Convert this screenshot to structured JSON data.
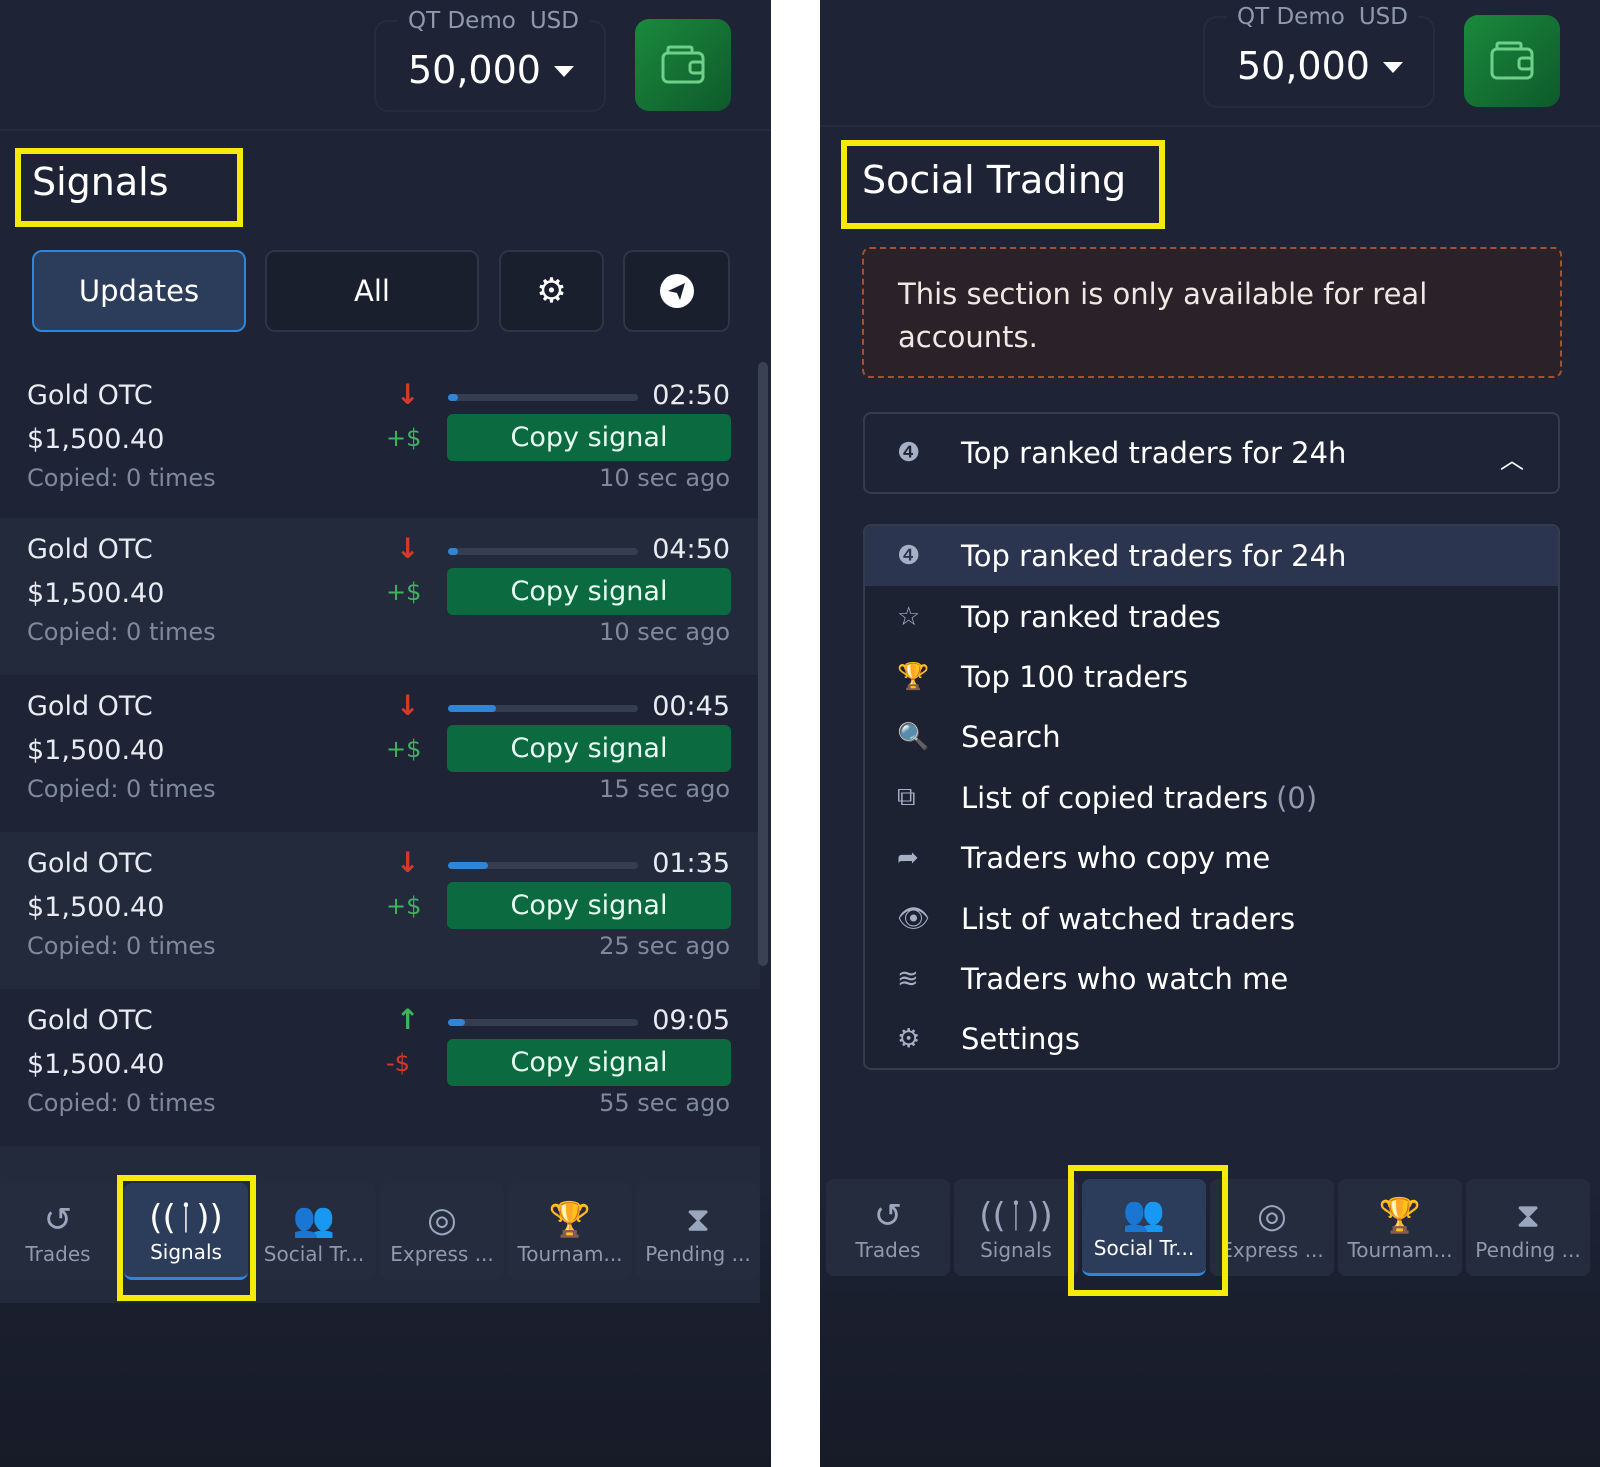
{
  "account": {
    "label": "QT Demo",
    "currency": "USD",
    "balance": "50,000"
  },
  "signals_panel": {
    "title": "Signals",
    "tabs": [
      {
        "label": "Updates",
        "active": true
      },
      {
        "label": "All"
      }
    ],
    "icons": [
      "gear-icon",
      "telegram-icon"
    ],
    "rows": [
      {
        "asset": "Gold OTC",
        "price": "$1,500.40",
        "copied": "Copied: 0 times",
        "direction": "down",
        "profit": "+$",
        "progress": 0.05,
        "time": "02:50",
        "button": "Copy signal",
        "ago": "10 sec ago"
      },
      {
        "asset": "Gold OTC",
        "price": "$1,500.40",
        "copied": "Copied: 0 times",
        "direction": "down",
        "profit": "+$",
        "progress": 0.04,
        "time": "04:50",
        "button": "Copy signal",
        "ago": "10 sec ago"
      },
      {
        "asset": "Gold OTC",
        "price": "$1,500.40",
        "copied": "Copied: 0 times",
        "direction": "down",
        "profit": "+$",
        "progress": 0.25,
        "time": "00:45",
        "button": "Copy signal",
        "ago": "15 sec ago"
      },
      {
        "asset": "Gold OTC",
        "price": "$1,500.40",
        "copied": "Copied: 0 times",
        "direction": "down",
        "profit": "+$",
        "progress": 0.21,
        "time": "01:35",
        "button": "Copy signal",
        "ago": "25 sec ago"
      },
      {
        "asset": "Gold OTC",
        "price": "$1,500.40",
        "copied": "Copied: 0 times",
        "direction": "up",
        "profit": "-$",
        "progress": 0.09,
        "time": "09:05",
        "button": "Copy signal",
        "ago": "55 sec ago"
      }
    ]
  },
  "social_panel": {
    "title": "Social Trading",
    "notice": "This section is only available for real accounts.",
    "dropdown": {
      "selected": "Top ranked traders for 24h"
    },
    "menu": [
      {
        "icon": "badge-24-icon",
        "glyph": "❹",
        "label": "Top ranked traders for 24h",
        "count": ""
      },
      {
        "icon": "star-icon",
        "glyph": "☆",
        "label": "Top ranked trades",
        "count": ""
      },
      {
        "icon": "trophy-icon",
        "glyph": "🏆",
        "label": "Top 100 traders",
        "count": ""
      },
      {
        "icon": "search-icon",
        "glyph": "🔍",
        "label": "Search",
        "count": ""
      },
      {
        "icon": "copy-icon",
        "glyph": "⧉",
        "label": "List of copied traders",
        "count": "(0)"
      },
      {
        "icon": "share-arrow-icon",
        "glyph": "➦",
        "label": "Traders who copy me",
        "count": ""
      },
      {
        "icon": "eye-icon",
        "glyph": "👁",
        "label": "List of watched traders",
        "count": ""
      },
      {
        "icon": "rss-icon",
        "glyph": "≋",
        "label": "Traders who watch me",
        "count": ""
      },
      {
        "icon": "gear-icon",
        "glyph": "⚙",
        "label": "Settings",
        "count": ""
      }
    ]
  },
  "bottom_nav": [
    {
      "icon": "history-icon",
      "glyph": "↺",
      "label": "Trades"
    },
    {
      "icon": "antenna-icon",
      "glyph": "((ᛙ))",
      "label": "Signals"
    },
    {
      "icon": "users-icon",
      "glyph": "👥",
      "label": "Social Tr..."
    },
    {
      "icon": "target-icon",
      "glyph": "◎",
      "label": "Express ..."
    },
    {
      "icon": "trophy-icon",
      "glyph": "🏆",
      "label": "Tournam..."
    },
    {
      "icon": "hourglass-icon",
      "glyph": "⧗",
      "label": "Pending ..."
    }
  ],
  "colors": {
    "accent": "#2f86d6",
    "copy_button": "#0b6a3f",
    "down": "#d23a2a",
    "up": "#3cb55a",
    "highlight": "#f5ea0a"
  }
}
